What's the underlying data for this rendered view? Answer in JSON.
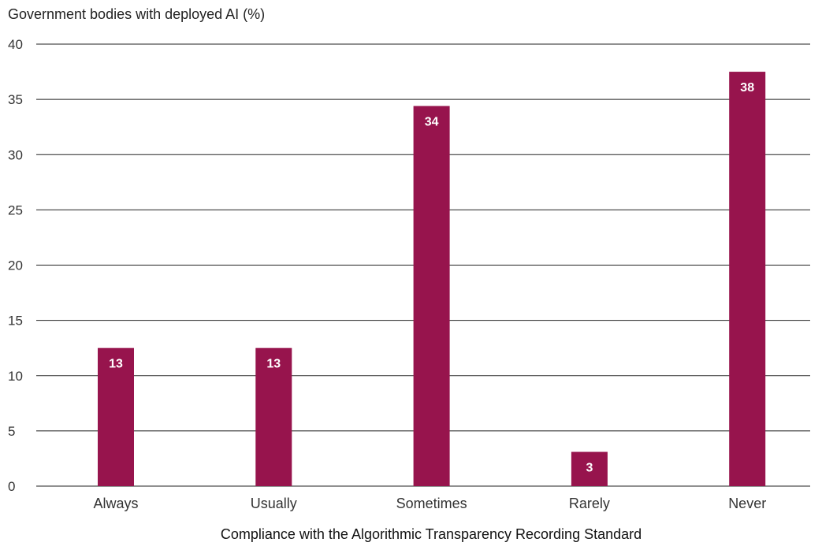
{
  "chart_data": {
    "type": "bar",
    "title": "Government bodies with deployed AI (%)",
    "xlabel": "Compliance with the Algorithmic Transparency Recording Standard",
    "ylabel": "",
    "categories": [
      "Always",
      "Usually",
      "Sometimes",
      "Rarely",
      "Never"
    ],
    "values": [
      12.5,
      12.5,
      34.4,
      3.1,
      37.5
    ],
    "data_labels": [
      "13",
      "13",
      "34",
      "3",
      "38"
    ],
    "ylim": [
      0,
      40
    ],
    "yticks": [
      0,
      5,
      10,
      15,
      20,
      25,
      30,
      35,
      40
    ],
    "grid": "horizontal",
    "legend": "none",
    "bar_color": "#97144D",
    "grid_color": "#222222"
  }
}
